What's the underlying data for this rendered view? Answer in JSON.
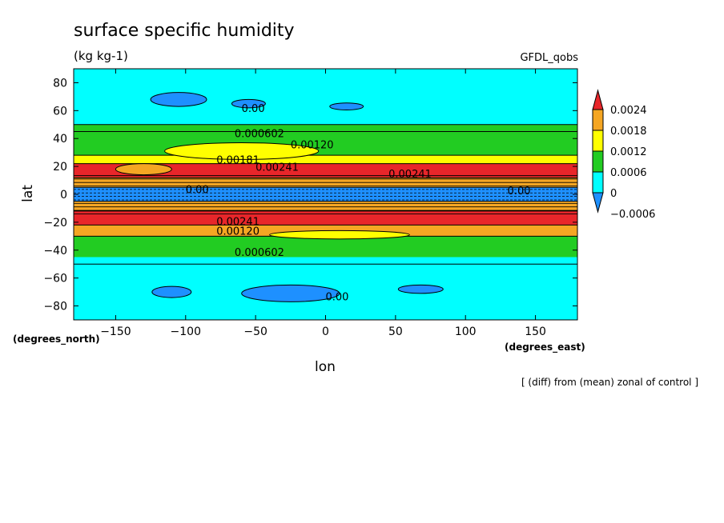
{
  "chart_data": {
    "type": "heatmap",
    "title": "surface specific humidity",
    "units": "(kg kg-1)",
    "source_label": "GFDL_qobs",
    "xlabel": "lon",
    "ylabel": "lat",
    "x_units": "(degrees_east)",
    "y_units": "(degrees_north)",
    "footnote": "[ (diff) from (mean) zonal of control ]",
    "xlim": [
      -180,
      180
    ],
    "ylim": [
      -90,
      90
    ],
    "x_ticks": [
      -150,
      -100,
      -50,
      0,
      50,
      100,
      150
    ],
    "y_ticks": [
      80,
      60,
      40,
      20,
      0,
      -20,
      -40,
      -60,
      -80
    ],
    "colorbar": {
      "labels": [
        "0.0024",
        "0.0018",
        "0.0012",
        "0.0006",
        "0",
        "-0.0006"
      ],
      "colors": [
        "#e8262a",
        "#f5a623",
        "#ffff00",
        "#22cc22",
        "#00ffff",
        "#1e90ff"
      ]
    },
    "contour_labels": [
      "0.00",
      "0.000602",
      "0.00120",
      "0.00181",
      "0.00241",
      "0.00241",
      "0.000602",
      "0.00120",
      "0.00241",
      "0.00",
      "0.00",
      "0.00"
    ],
    "zonal_bands": [
      {
        "lat_min": 50,
        "lat_max": 90,
        "level": "0"
      },
      {
        "lat_min": 45,
        "lat_max": 50,
        "level": "0.0006"
      },
      {
        "lat_min": 28,
        "lat_max": 45,
        "level": "0.0006"
      },
      {
        "lat_min": 22,
        "lat_max": 28,
        "level": "0.0012"
      },
      {
        "lat_min": 12,
        "lat_max": 22,
        "level": "0.0024"
      },
      {
        "lat_min": 5,
        "lat_max": 12,
        "level": "0.0018"
      },
      {
        "lat_min": -5,
        "lat_max": 5,
        "level": "-0.0006"
      },
      {
        "lat_min": -12,
        "lat_max": -5,
        "level": "0.0018"
      },
      {
        "lat_min": -22,
        "lat_max": -12,
        "level": "0.0024"
      },
      {
        "lat_min": -30,
        "lat_max": -22,
        "level": "0.0018"
      },
      {
        "lat_min": -45,
        "lat_max": -30,
        "level": "0.0006"
      },
      {
        "lat_min": -90,
        "lat_max": -50,
        "level": "0"
      }
    ]
  }
}
